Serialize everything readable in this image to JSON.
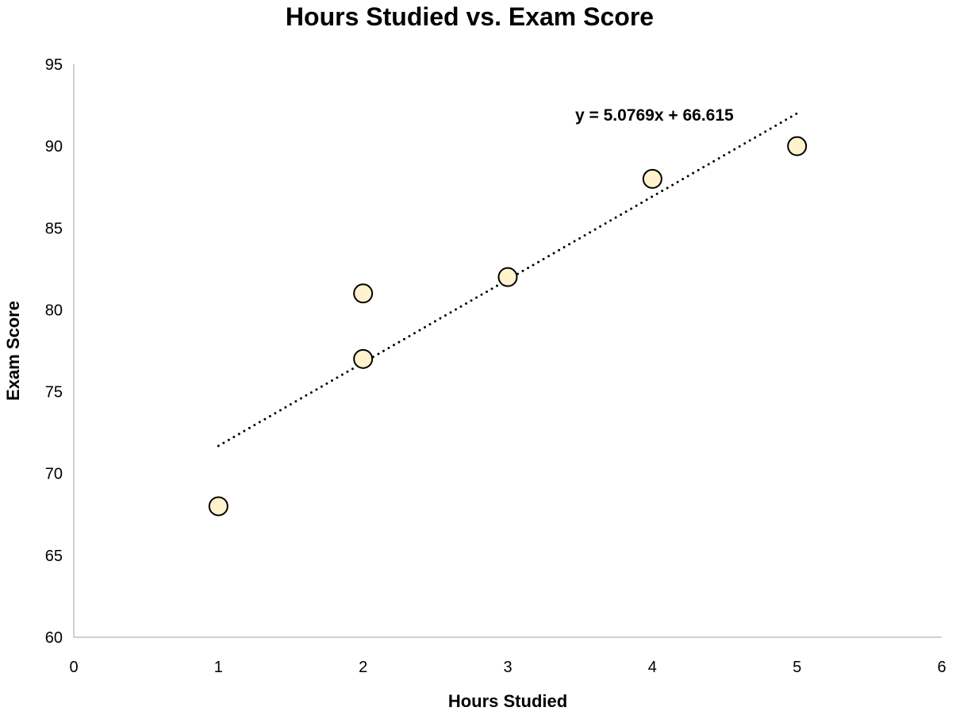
{
  "chart_data": {
    "type": "scatter",
    "title": "Hours Studied vs. Exam Score",
    "xlabel": "Hours Studied",
    "ylabel": "Exam Score",
    "xlim": [
      0,
      6
    ],
    "ylim": [
      60,
      95
    ],
    "xticks": [
      "0",
      "1",
      "2",
      "3",
      "4",
      "5",
      "6"
    ],
    "yticks": [
      "60",
      "65",
      "70",
      "75",
      "80",
      "85",
      "90",
      "95"
    ],
    "grid": false,
    "points": [
      {
        "x": 1,
        "y": 68
      },
      {
        "x": 2,
        "y": 81
      },
      {
        "x": 2,
        "y": 77
      },
      {
        "x": 3,
        "y": 82
      },
      {
        "x": 4,
        "y": 88
      },
      {
        "x": 5,
        "y": 90
      }
    ],
    "trendline": {
      "slope": 5.0769,
      "intercept": 66.615,
      "x_range": [
        1,
        5
      ],
      "style": "dotted",
      "label": "y = 5.0769x + 66.615"
    },
    "colors": {
      "marker_fill": "#FFF2CC",
      "marker_stroke": "#000000",
      "axis": "#BFBFBF",
      "trendline": "#000000"
    }
  }
}
